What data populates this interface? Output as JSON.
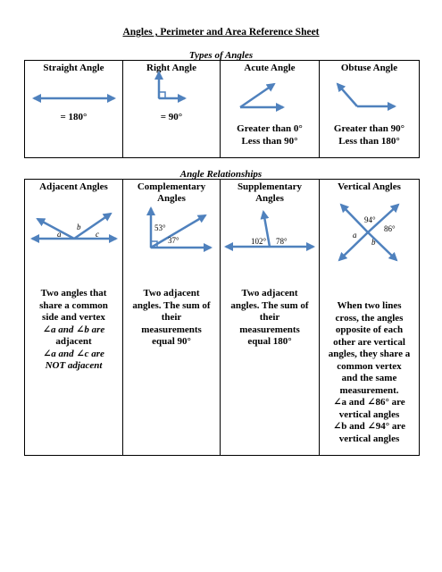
{
  "title": "Angles , Perimeter and Area Reference Sheet",
  "types_section": {
    "heading": "Types of Angles",
    "columns": [
      {
        "header": "Straight Angle",
        "line1": "= 180°",
        "line2": ""
      },
      {
        "header": "Right Angle",
        "line1": "= 90°",
        "line2": ""
      },
      {
        "header": "Acute Angle",
        "line1": "Greater than 0°",
        "line2": "Less than 90°"
      },
      {
        "header": "Obtuse Angle",
        "line1": "Greater than 90°",
        "line2": "Less than 180°"
      }
    ]
  },
  "relationships_section": {
    "heading": "Angle Relationships",
    "columns": [
      {
        "header": "Adjacent Angles",
        "labels": {
          "a": "a",
          "b": "b",
          "c": "c"
        },
        "lines": [
          "Two angles that",
          "share a common",
          "side and vertex",
          "∠a and ∠b are",
          "adjacent",
          "∠a and ∠c are",
          "NOT adjacent"
        ]
      },
      {
        "header": "Complementary Angles",
        "labels": {
          "upper": "53°",
          "lower": "37°"
        },
        "lines": [
          "Two adjacent",
          "angles.  The sum of",
          "their",
          "measurements",
          "equal 90°"
        ]
      },
      {
        "header": "Supplementary Angles",
        "labels": {
          "left": "102°",
          "right": "78°"
        },
        "lines": [
          "Two adjacent",
          "angles. The sum of",
          "their",
          "measurements",
          "equal 180°"
        ]
      },
      {
        "header": "Vertical Angles",
        "labels": {
          "top": "94°",
          "right": "86°",
          "left": "a",
          "bottom": "b"
        },
        "lines": [
          "When two lines",
          "cross, the angles",
          "opposite of each",
          "other are vertical",
          "angles, they share a",
          "common vertex",
          "and the same",
          "measurement.",
          "∠a and ∠86° are",
          "vertical angles",
          "∠b and ∠94° are",
          "vertical angles"
        ]
      }
    ]
  },
  "colors": {
    "arrow": "#4f81bd",
    "border": "#000000"
  },
  "icons": [
    "straight-angle-arrow-icon",
    "right-angle-arrow-icon",
    "acute-angle-arrow-icon",
    "obtuse-angle-arrow-icon",
    "adjacent-angles-icon",
    "complementary-angles-icon",
    "supplementary-angles-icon",
    "vertical-angles-icon"
  ]
}
